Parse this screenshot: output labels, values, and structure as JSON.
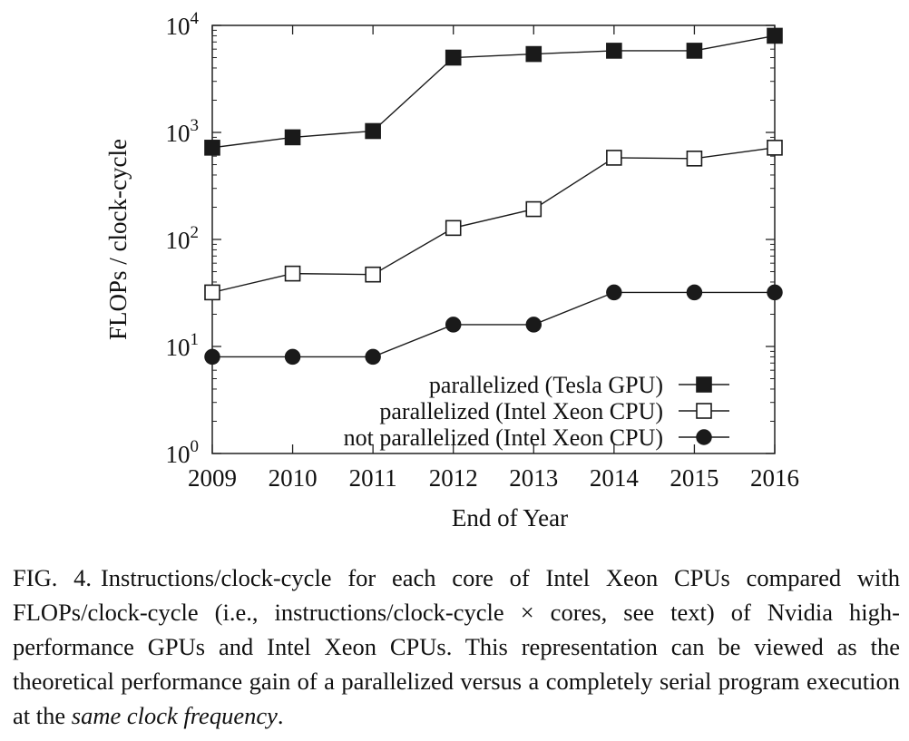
{
  "chart_data": {
    "type": "line",
    "y_scale": "log",
    "ylim": [
      1,
      10000
    ],
    "y_ticks": [
      {
        "value": 1,
        "base": "10",
        "exp": "0"
      },
      {
        "value": 10,
        "base": "10",
        "exp": "1"
      },
      {
        "value": 100,
        "base": "10",
        "exp": "2"
      },
      {
        "value": 1000,
        "base": "10",
        "exp": "3"
      },
      {
        "value": 10000,
        "base": "10",
        "exp": "4"
      }
    ],
    "xlabel": "End of Year",
    "ylabel": "FLOPs / clock-cycle",
    "categories": [
      "2009",
      "2010",
      "2011",
      "2012",
      "2013",
      "2014",
      "2015",
      "2016"
    ],
    "legend_position": "bottom-right",
    "grid": false,
    "series": [
      {
        "name": "parallelized (Tesla GPU)",
        "marker": "filled-square",
        "color": "#1a1a1a",
        "values": [
          720,
          900,
          1030,
          5000,
          5400,
          5800,
          5800,
          8000
        ]
      },
      {
        "name": "parallelized (Intel Xeon CPU)",
        "marker": "open-square",
        "color": "#1a1a1a",
        "values": [
          32,
          48,
          47,
          128,
          192,
          580,
          570,
          720
        ]
      },
      {
        "name": "not parallelized (Intel Xeon CPU)",
        "marker": "filled-circle",
        "color": "#1a1a1a",
        "values": [
          8,
          8,
          8,
          16,
          16,
          32,
          32,
          32
        ]
      }
    ]
  },
  "caption": {
    "label": "FIG. 4.",
    "text": "Instructions/clock-cycle for each core of Intel Xeon CPUs compared with FLOPs/clock-cycle (i.e., instructions/clock-cycle × cores, see text) of Nvidia high-performance GPUs and Intel Xeon CPUs. This representation can be viewed as the theoretical performance gain of a parallelized versus a completely serial program execution at the",
    "emphasis": "same clock frequency",
    "end": "."
  }
}
